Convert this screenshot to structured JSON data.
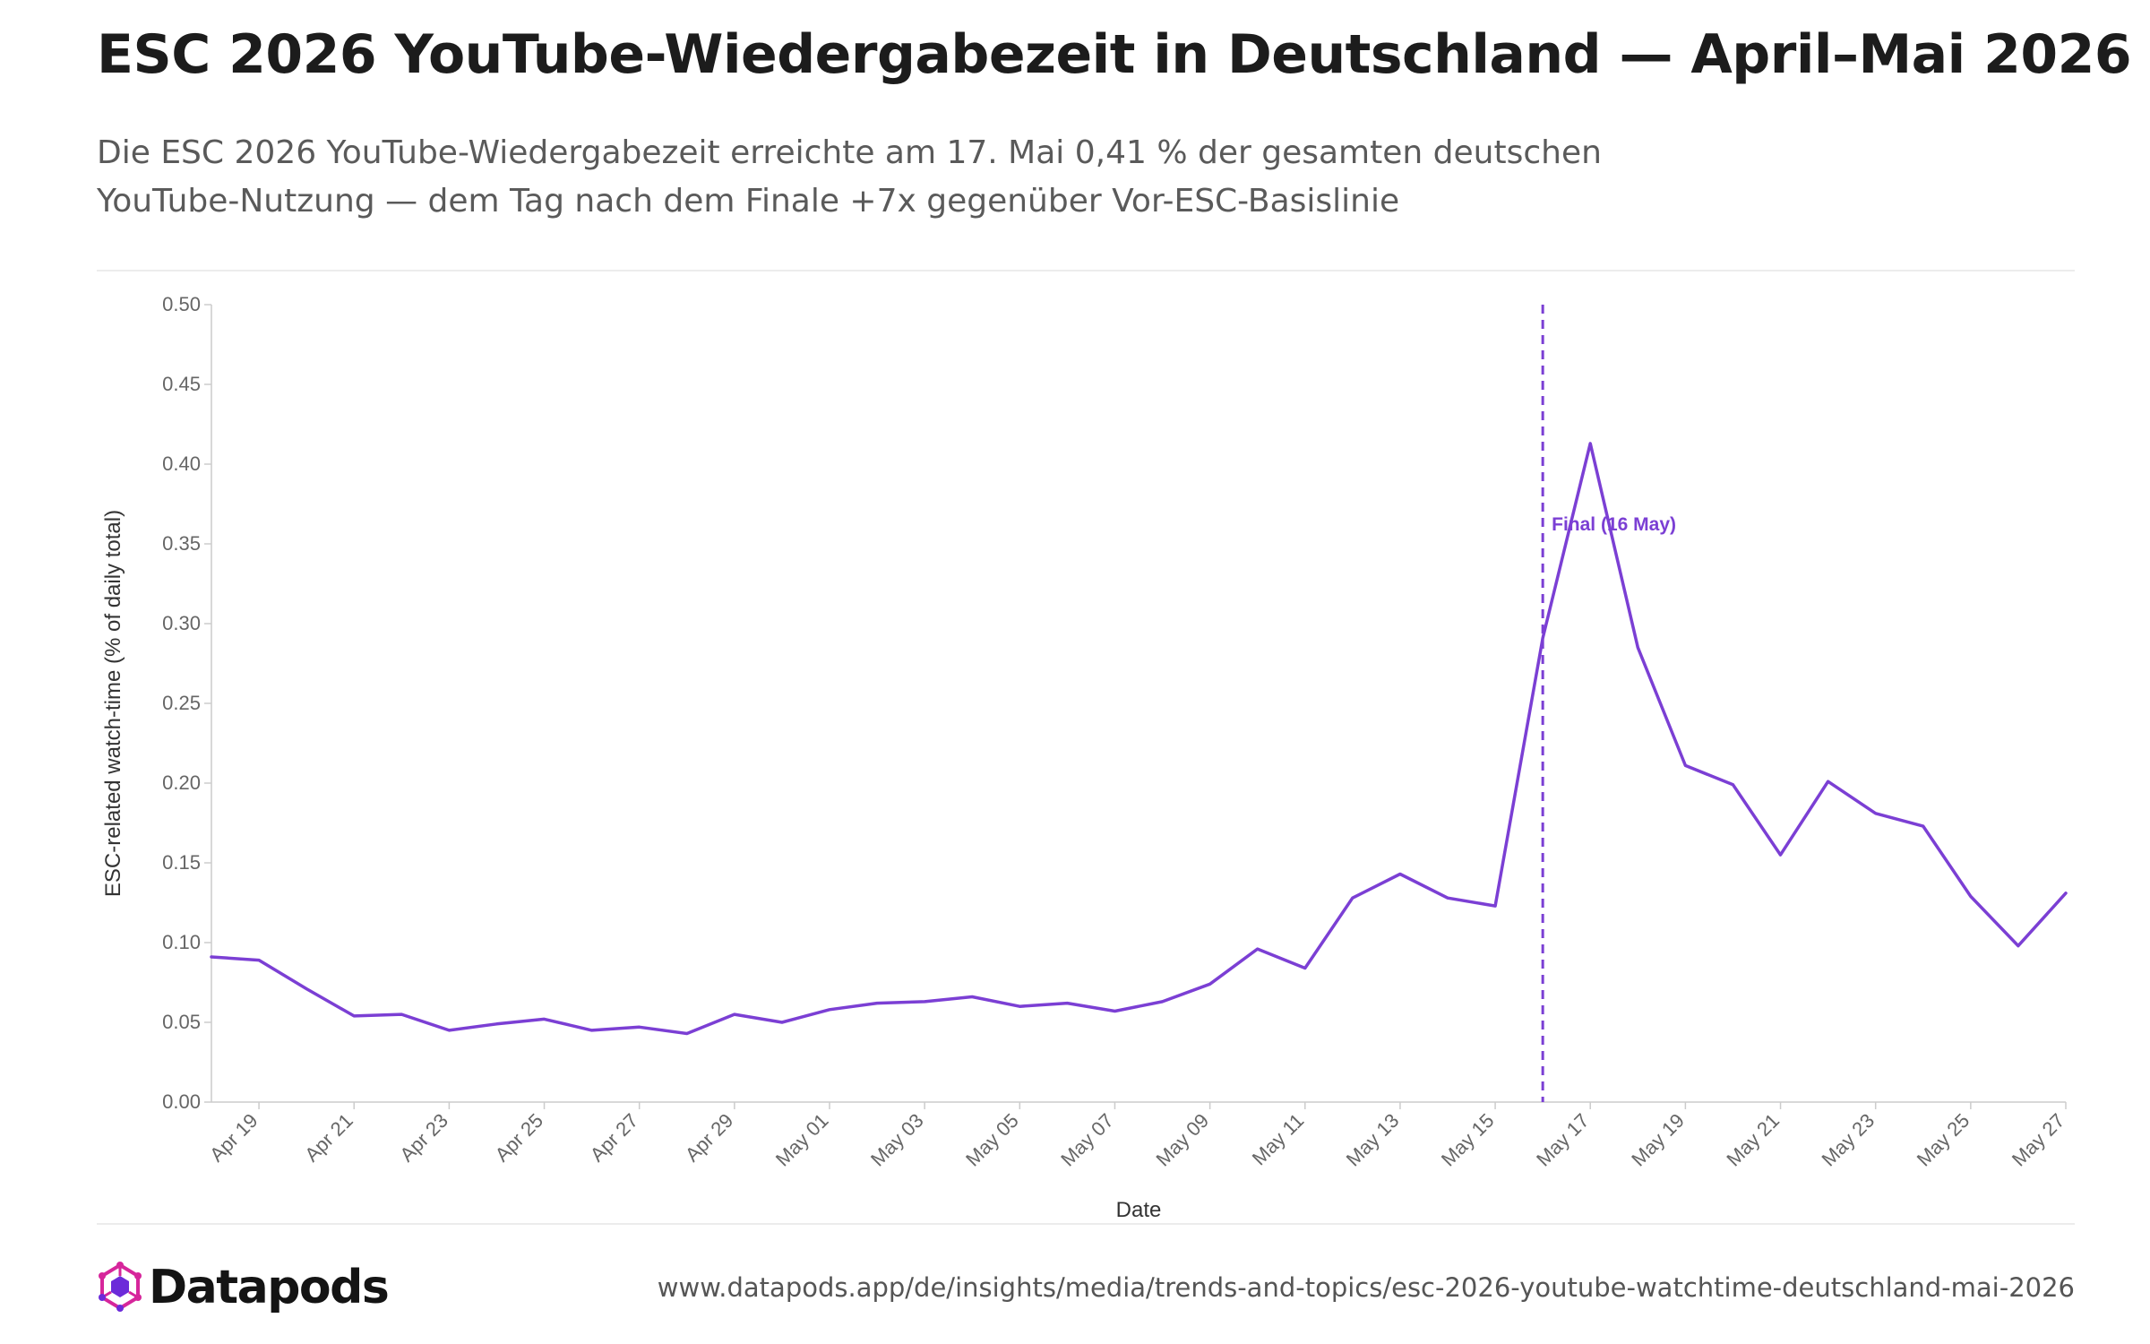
{
  "title": "ESC 2026 YouTube-Wiedergabezeit in Deutschland — April–Mai 2026",
  "subtitle": "Die ESC 2026 YouTube-Wiedergabezeit erreichte am 17. Mai 0,41 % der gesamten deutschen YouTube-Nutzung — dem Tag nach dem Finale +7x gegenüber Vor-ESC-Basislinie",
  "footer": {
    "brand": "Datapods",
    "url": "www.datapods.app/de/insights/media/trends-and-topics/esc-2026-youtube-watchtime-deutschland-mai-2026"
  },
  "colors": {
    "line": "#7b3fd4",
    "annotation": "#7b3fd4",
    "axis": "#cccccc",
    "logo_pink": "#d6269b",
    "logo_purple": "#6c2bd9"
  },
  "chart_data": {
    "type": "line",
    "xlabel": "Date",
    "ylabel": "ESC-related watch-time (% of daily total)",
    "ylim": [
      0,
      0.5
    ],
    "yticks": [
      "0.00",
      "0.05",
      "0.10",
      "0.15",
      "0.20",
      "0.25",
      "0.30",
      "0.35",
      "0.40",
      "0.45",
      "0.50"
    ],
    "x_tick_labels": [
      "Apr 19",
      "Apr 21",
      "Apr 23",
      "Apr 25",
      "Apr 27",
      "Apr 29",
      "May 01",
      "May 03",
      "May 05",
      "May 07",
      "May 09",
      "May 11",
      "May 13",
      "May 15",
      "May 17",
      "May 19",
      "May 21",
      "May 23",
      "May 25",
      "May 27"
    ],
    "x": [
      "2026-04-18",
      "2026-04-19",
      "2026-04-20",
      "2026-04-21",
      "2026-04-22",
      "2026-04-23",
      "2026-04-24",
      "2026-04-25",
      "2026-04-26",
      "2026-04-27",
      "2026-04-28",
      "2026-04-29",
      "2026-04-30",
      "2026-05-01",
      "2026-05-02",
      "2026-05-03",
      "2026-05-04",
      "2026-05-05",
      "2026-05-06",
      "2026-05-07",
      "2026-05-08",
      "2026-05-09",
      "2026-05-10",
      "2026-05-11",
      "2026-05-12",
      "2026-05-13",
      "2026-05-14",
      "2026-05-15",
      "2026-05-16",
      "2026-05-17",
      "2026-05-18",
      "2026-05-19",
      "2026-05-20",
      "2026-05-21",
      "2026-05-22",
      "2026-05-23",
      "2026-05-24",
      "2026-05-25",
      "2026-05-26",
      "2026-05-27"
    ],
    "series": [
      {
        "values": [
          0.091,
          0.089,
          0.071,
          0.054,
          0.055,
          0.045,
          0.049,
          0.052,
          0.045,
          0.047,
          0.043,
          0.055,
          0.05,
          0.058,
          0.062,
          0.063,
          0.066,
          0.06,
          0.062,
          0.057,
          0.063,
          0.074,
          0.096,
          0.084,
          0.128,
          0.143,
          0.128,
          0.123,
          0.291,
          0.413,
          0.285,
          0.211,
          0.199,
          0.155,
          0.201,
          0.181,
          0.173,
          0.129,
          0.098,
          0.131
        ]
      }
    ],
    "annotations": [
      {
        "type": "vline",
        "x": "2026-05-16",
        "label": "Final (16 May)"
      }
    ]
  }
}
